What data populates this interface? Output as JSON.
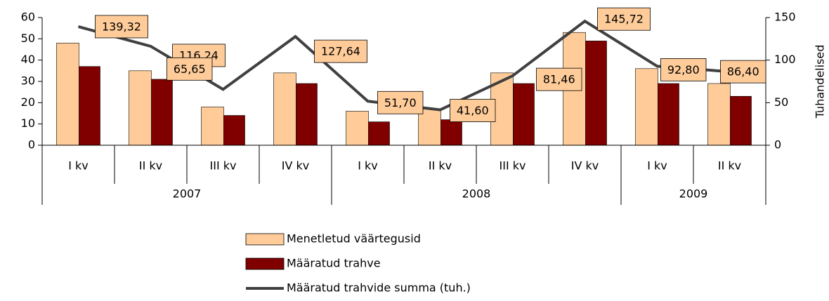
{
  "chart_data": {
    "type": "bar-line",
    "categories": [
      "I kv",
      "II kv",
      "III kv",
      "IV kv",
      "I kv",
      "II kv",
      "III kv",
      "IV kv",
      "I kv",
      "II kv"
    ],
    "groups": [
      {
        "label": "2007",
        "size": 4
      },
      {
        "label": "2008",
        "size": 4
      },
      {
        "label": "2009",
        "size": 2
      }
    ],
    "series": [
      {
        "name": "Menetletud väärtegusid",
        "color": "#ffcc99",
        "type": "bar",
        "values": [
          48,
          35,
          18,
          34,
          16,
          17,
          34,
          53,
          36,
          29
        ]
      },
      {
        "name": "Määratud trahve",
        "color": "#800000",
        "type": "bar",
        "values": [
          37,
          31,
          14,
          29,
          11,
          12,
          29,
          49,
          29,
          23
        ]
      },
      {
        "name": "Määratud trahvide summa (tuh.)",
        "color": "#404040",
        "type": "line",
        "axis": "y2",
        "values": [
          139.32,
          116.24,
          65.65,
          127.64,
          51.7,
          41.6,
          81.46,
          145.72,
          92.8,
          86.4
        ],
        "value_labels": [
          "139,32",
          "116,24",
          "65,65",
          "127,64",
          "51,70",
          "41,60",
          "81,46",
          "145,72",
          "92,80",
          "86,40"
        ]
      }
    ],
    "ylim": [
      0,
      60
    ],
    "yticks": [
      0,
      10,
      20,
      30,
      40,
      50,
      60
    ],
    "y2lim": [
      0,
      150
    ],
    "y2ticks": [
      0,
      50,
      100,
      150
    ],
    "y2label": "Tuhandelised"
  }
}
